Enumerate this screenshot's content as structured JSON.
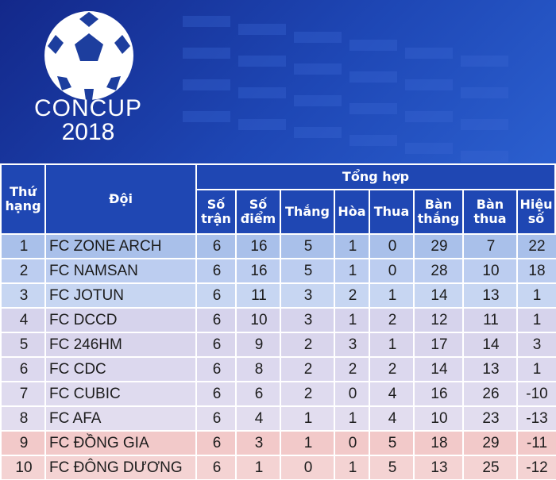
{
  "logo": {
    "line1": "CONCUP",
    "line2": "2018"
  },
  "header": {
    "rank_line1": "Thứ",
    "rank_line2": "hạng",
    "team": "Đội",
    "group": "Tổng hợp",
    "played_line1": "Số",
    "played_line2": "trận",
    "points_line1": "Số",
    "points_line2": "điểm",
    "wins": "Thắng",
    "draws": "Hòa",
    "losses": "Thua",
    "gf_line1": "Bàn",
    "gf_line2": "thắng",
    "ga_line1": "Bàn",
    "ga_line2": "thua",
    "gd_line1": "Hiệu",
    "gd_line2": "số"
  },
  "rows": [
    {
      "rank": "1",
      "team": "FC ZONE ARCH",
      "played": "6",
      "points": "16",
      "wins": "5",
      "draws": "1",
      "losses": "0",
      "gf": "29",
      "ga": "7",
      "gd": "22",
      "color": "#a9c0ea"
    },
    {
      "rank": "2",
      "team": "FC NAMSAN",
      "played": "6",
      "points": "16",
      "wins": "5",
      "draws": "1",
      "losses": "0",
      "gf": "28",
      "ga": "10",
      "gd": "18",
      "color": "#bccdf0"
    },
    {
      "rank": "3",
      "team": "FC JOTUN",
      "played": "6",
      "points": "11",
      "wins": "3",
      "draws": "2",
      "losses": "1",
      "gf": "14",
      "ga": "13",
      "gd": "1",
      "color": "#c7d6f2"
    },
    {
      "rank": "4",
      "team": "FC DCCD",
      "played": "6",
      "points": "10",
      "wins": "3",
      "draws": "1",
      "losses": "2",
      "gf": "12",
      "ga": "11",
      "gd": "1",
      "color": "#d6d3ec"
    },
    {
      "rank": "5",
      "team": "FC 246HM",
      "played": "6",
      "points": "9",
      "wins": "2",
      "draws": "3",
      "losses": "1",
      "gf": "17",
      "ga": "14",
      "gd": "3",
      "color": "#d9d5ec"
    },
    {
      "rank": "6",
      "team": "FC CDC",
      "played": "6",
      "points": "8",
      "wins": "2",
      "draws": "2",
      "losses": "2",
      "gf": "14",
      "ga": "13",
      "gd": "1",
      "color": "#dcd8ee"
    },
    {
      "rank": "7",
      "team": "FC CUBIC",
      "played": "6",
      "points": "6",
      "wins": "2",
      "draws": "0",
      "losses": "4",
      "gf": "16",
      "ga": "26",
      "gd": "-10",
      "color": "#dfdbef"
    },
    {
      "rank": "8",
      "team": "FC AFA",
      "played": "6",
      "points": "4",
      "wins": "1",
      "draws": "1",
      "losses": "4",
      "gf": "10",
      "ga": "23",
      "gd": "-13",
      "color": "#e2ddef"
    },
    {
      "rank": "9",
      "team": "FC ĐỒNG GIA",
      "played": "6",
      "points": "3",
      "wins": "1",
      "draws": "0",
      "losses": "5",
      "gf": "18",
      "ga": "29",
      "gd": "-11",
      "color": "#f2c9c9"
    },
    {
      "rank": "10",
      "team": "FC ĐÔNG DƯƠNG",
      "played": "6",
      "points": "1",
      "wins": "0",
      "draws": "1",
      "losses": "5",
      "gf": "13",
      "ga": "25",
      "gd": "-12",
      "color": "#f4d3d3"
    }
  ]
}
